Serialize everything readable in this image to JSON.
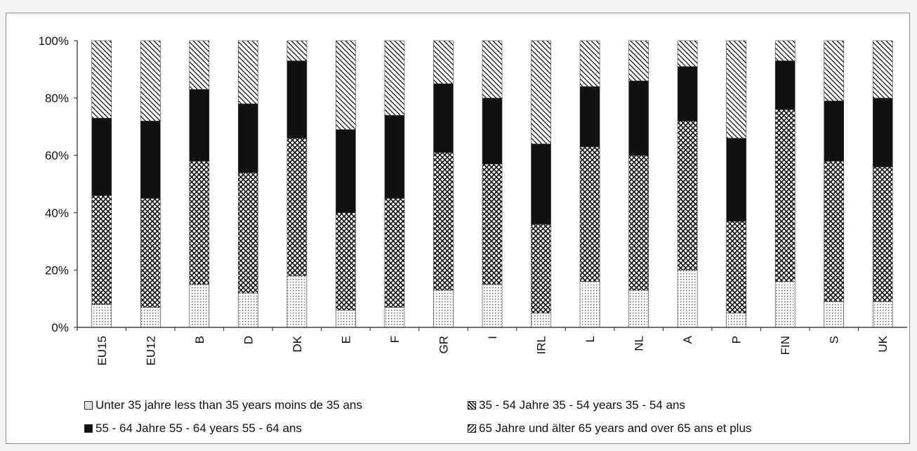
{
  "chart_data": {
    "type": "bar",
    "stacked": true,
    "normalized_percent": true,
    "categories": [
      "EU15",
      "EU12",
      "B",
      "D",
      "DK",
      "E",
      "F",
      "GR",
      "I",
      "IRL",
      "L",
      "NL",
      "A",
      "P",
      "FIN",
      "S",
      "UK"
    ],
    "series": [
      {
        "name": "Unter 35 jahre  less than 35 years  moins de 35 ans",
        "pattern": "dots",
        "values": [
          8,
          7,
          15,
          12,
          18,
          6,
          7,
          13,
          15,
          5,
          16,
          13,
          20,
          5,
          16,
          9,
          9
        ]
      },
      {
        "name": "35 - 54 Jahre  35 - 54 years 35 - 54 ans",
        "pattern": "crosshatch",
        "values": [
          38,
          38,
          43,
          42,
          48,
          34,
          38,
          48,
          42,
          31,
          47,
          47,
          52,
          32,
          60,
          49,
          47
        ]
      },
      {
        "name": "55 - 64 Jahre  55 - 64 years  55 - 64 ans",
        "pattern": "solid",
        "values": [
          27,
          27,
          25,
          24,
          27,
          29,
          29,
          24,
          23,
          28,
          21,
          26,
          19,
          29,
          17,
          21,
          24
        ]
      },
      {
        "name": "65 Jahre und älter  65 years and over  65 ans et plus",
        "pattern": "diagonal",
        "values": [
          27,
          28,
          17,
          22,
          7,
          31,
          26,
          15,
          20,
          36,
          16,
          14,
          9,
          34,
          7,
          21,
          20
        ]
      }
    ],
    "yticks": [
      "0%",
      "20%",
      "40%",
      "60%",
      "80%",
      "100%"
    ],
    "ylim": [
      0,
      100
    ],
    "grid": false,
    "legend_position": "bottom"
  },
  "colors": {
    "bar_fill": "#111111",
    "axis": "#222222",
    "frame": "#8c8c8c"
  }
}
